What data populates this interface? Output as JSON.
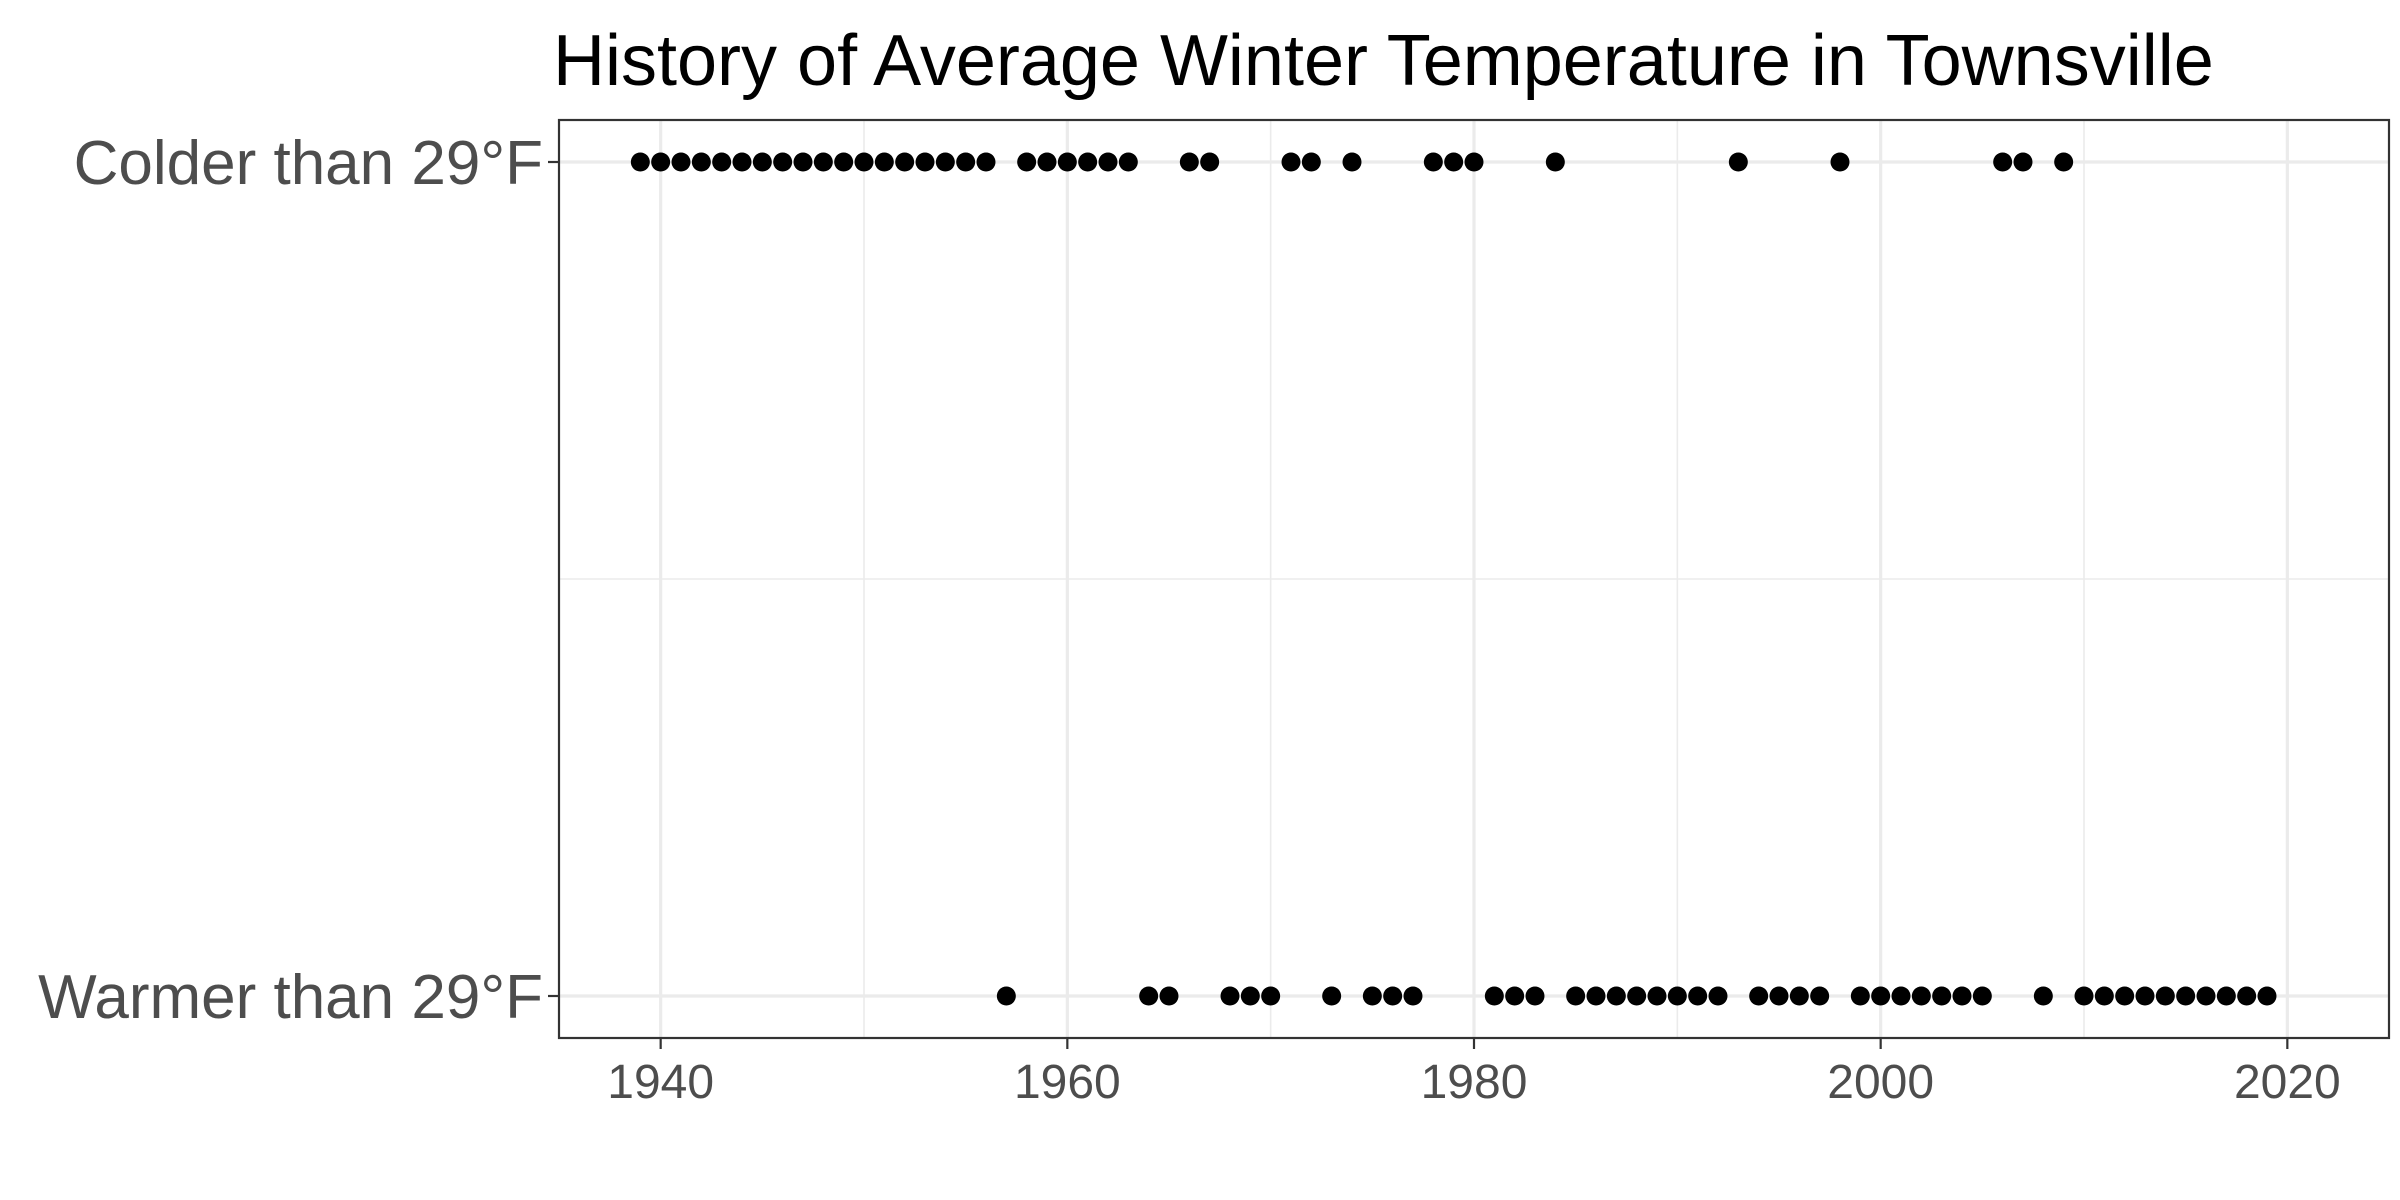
{
  "chart_data": {
    "type": "scatter",
    "title": "History of Average Winter Temperature in Townsville",
    "xlabel": "",
    "ylabel": "",
    "xlim": [
      1935,
      2025
    ],
    "x_ticks": [
      1940,
      1960,
      1980,
      2000,
      2020
    ],
    "categories": [
      "Colder than 29°F",
      "Warmer than 29°F"
    ],
    "grid": true,
    "legend": "none",
    "series": [
      {
        "category": "Colder than 29°F",
        "x": [
          1939,
          1940,
          1941,
          1942,
          1943,
          1944,
          1945,
          1946,
          1947,
          1948,
          1949,
          1950,
          1951,
          1952,
          1953,
          1954,
          1955,
          1956,
          1958,
          1959,
          1960,
          1961,
          1962,
          1963,
          1966,
          1967,
          1971,
          1972,
          1974,
          1978,
          1979,
          1980,
          1984,
          1993,
          1998,
          2006,
          2007,
          2009
        ]
      },
      {
        "category": "Warmer than 29°F",
        "x": [
          1957,
          1964,
          1965,
          1968,
          1969,
          1970,
          1973,
          1975,
          1976,
          1977,
          1981,
          1982,
          1983,
          1985,
          1986,
          1987,
          1988,
          1989,
          1990,
          1991,
          1992,
          1994,
          1995,
          1996,
          1997,
          1999,
          2000,
          2001,
          2002,
          2003,
          2004,
          2005,
          2008,
          2010,
          2011,
          2012,
          2013,
          2014,
          2015,
          2016,
          2017,
          2018,
          2019
        ]
      }
    ],
    "colors": {
      "points": "#000000",
      "grid": "#ebebeb",
      "panel_border": "#333333",
      "tick_label": "#4d4d4d",
      "title": "#000000"
    }
  }
}
